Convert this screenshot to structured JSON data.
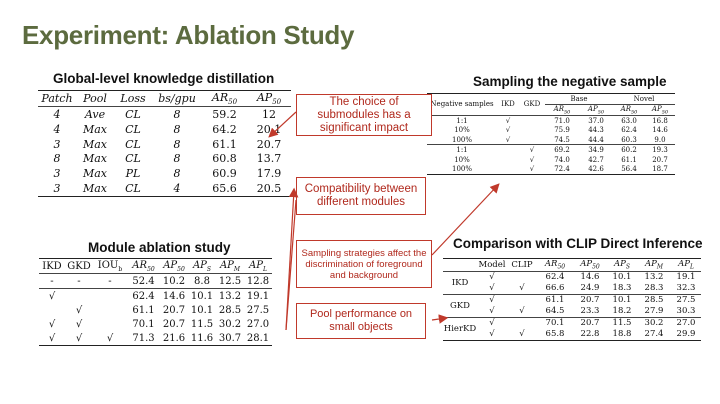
{
  "slide_title": "Experiment: Ablation Study",
  "global_kd": {
    "heading": "Global-level knowledge distillation",
    "headers": [
      "Patch",
      "Pool",
      "Loss",
      "bs/gpu",
      "AR50",
      "AP50"
    ],
    "rows": [
      [
        "4",
        "Ave",
        "CL",
        "8",
        "59.2",
        "12"
      ],
      [
        "4",
        "Max",
        "CL",
        "8",
        "64.2",
        "20.1"
      ],
      [
        "3",
        "Max",
        "CL",
        "8",
        "61.1",
        "20.7"
      ],
      [
        "8",
        "Max",
        "CL",
        "8",
        "60.8",
        "13.7"
      ],
      [
        "3",
        "Max",
        "PL",
        "8",
        "60.9",
        "17.9"
      ],
      [
        "3",
        "Max",
        "CL",
        "4",
        "65.6",
        "20.5"
      ]
    ]
  },
  "module_ablation": {
    "heading": "Module ablation study",
    "headers": [
      "IKD",
      "GKD",
      "IOUb",
      "AR50",
      "AP50",
      "APS",
      "APM",
      "APL"
    ],
    "rows": [
      [
        "-",
        "-",
        "-",
        "52.4",
        "10.2",
        "8.8",
        "12.5",
        "12.8"
      ],
      [
        "√",
        "",
        "",
        "62.4",
        "14.6",
        "10.1",
        "13.2",
        "19.1"
      ],
      [
        "",
        "√",
        "",
        "61.1",
        "20.7",
        "10.1",
        "28.5",
        "27.5"
      ],
      [
        "√",
        "√",
        "",
        "70.1",
        "20.7",
        "11.5",
        "30.2",
        "27.0"
      ],
      [
        "√",
        "√",
        "√",
        "71.3",
        "21.6",
        "11.6",
        "30.7",
        "28.1"
      ]
    ]
  },
  "sampling": {
    "heading": "Sampling the negative sample",
    "headers": [
      "Negative samples",
      "IKD",
      "GKD",
      "Base",
      "Novel",
      "AR50",
      "AP50",
      "AR50",
      "AP50"
    ],
    "rows": [
      [
        "1:1",
        "√",
        "",
        "71.0",
        "37.0",
        "63.0",
        "16.8"
      ],
      [
        "10%",
        "√",
        "",
        "75.9",
        "44.3",
        "62.4",
        "14.6"
      ],
      [
        "100%",
        "√",
        "",
        "74.5",
        "44.4",
        "60.3",
        "9.0"
      ],
      [
        "1:1",
        "",
        "√",
        "69.2",
        "34.9",
        "60.2",
        "19.3"
      ],
      [
        "10%",
        "",
        "√",
        "74.0",
        "42.7",
        "61.1",
        "20.7"
      ],
      [
        "100%",
        "",
        "√",
        "72.4",
        "42.6",
        "56.4",
        "18.7"
      ]
    ]
  },
  "clip": {
    "heading": "Comparison with CLIP Direct Inference",
    "headers": [
      "Model",
      "CLIP",
      "AR50",
      "AP50",
      "APS",
      "APM",
      "APL"
    ],
    "groups": [
      {
        "name": "IKD",
        "rows": [
          [
            "√",
            "",
            "62.4",
            "14.6",
            "10.1",
            "13.2",
            "19.1"
          ],
          [
            "√",
            "√",
            "66.6",
            "24.9",
            "18.3",
            "28.3",
            "32.3"
          ]
        ]
      },
      {
        "name": "GKD",
        "rows": [
          [
            "√",
            "",
            "61.1",
            "20.7",
            "10.1",
            "28.5",
            "27.5"
          ],
          [
            "√",
            "√",
            "64.5",
            "23.3",
            "18.2",
            "27.9",
            "30.3"
          ]
        ]
      },
      {
        "name": "HierKD",
        "rows": [
          [
            "√",
            "",
            "70.1",
            "20.7",
            "11.5",
            "30.2",
            "27.0"
          ],
          [
            "√",
            "√",
            "65.8",
            "22.8",
            "18.8",
            "27.4",
            "29.9"
          ]
        ]
      }
    ]
  },
  "callouts": {
    "submodules": "The choice of submodules has a significant impact",
    "compatibility": "Compatibility between different modules",
    "sampling": "Sampling strategies affect the discrimination of foreground and background",
    "pool": "Pool performance on small objects"
  },
  "colors": {
    "title": "#5c6b3f",
    "callout": "#c0392b"
  }
}
